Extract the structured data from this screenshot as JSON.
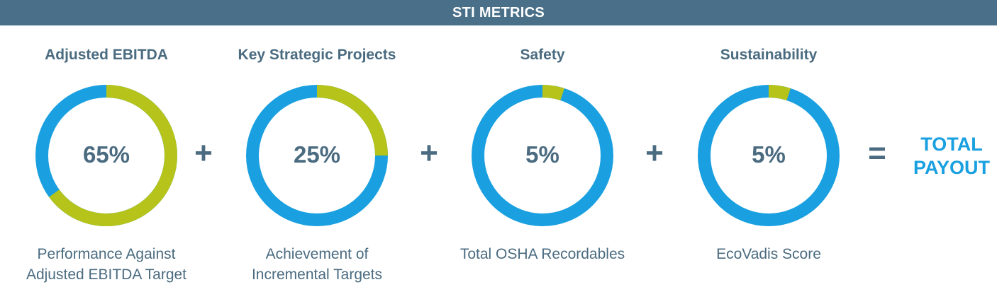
{
  "header": {
    "title": "STI METRICS"
  },
  "operators": {
    "plus": "+",
    "equals": "="
  },
  "total": {
    "line1": "TOTAL",
    "line2": "PAYOUT"
  },
  "colors": {
    "header_bg": "#4a7089",
    "text": "#4a6b80",
    "ring_base": "#1aa0e0",
    "ring_weight": "#b5c31a",
    "total_text": "#1aa0e0"
  },
  "chart_data": {
    "type": "pie",
    "title": "STI METRICS",
    "metrics": [
      {
        "name": "Adjusted EBITDA",
        "value": 65,
        "label": "65%",
        "description": "Performance Against\nAdjusted EBITDA Target"
      },
      {
        "name": "Key Strategic Projects",
        "value": 25,
        "label": "25%",
        "description": "Achievement of\nIncremental Targets"
      },
      {
        "name": "Safety",
        "value": 5,
        "label": "5%",
        "description": "Total OSHA Recordables"
      },
      {
        "name": "Sustainability",
        "value": 5,
        "label": "5%",
        "description": "EcoVadis Score"
      }
    ],
    "total_label": "TOTAL PAYOUT"
  }
}
